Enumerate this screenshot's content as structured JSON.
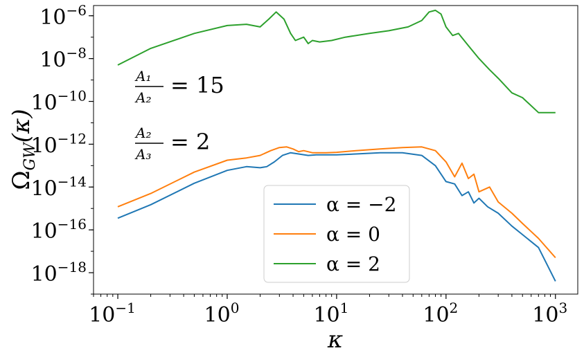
{
  "chart_data": {
    "type": "line",
    "xlabel": "κ",
    "ylabel_base": "Ω",
    "ylabel_sub": "GW",
    "ylabel_arg": "(κ)",
    "xscale": "log",
    "yscale": "log",
    "xlim": [
      0.06,
      1600
    ],
    "ylim": [
      1e-19,
      3e-06
    ],
    "grid": false,
    "legend_position": "bottom-center",
    "x_ticks": [
      {
        "value": 0.1,
        "base": "10",
        "exp": "−1"
      },
      {
        "value": 1,
        "base": "10",
        "exp": "0"
      },
      {
        "value": 10,
        "base": "10",
        "exp": "1"
      },
      {
        "value": 100,
        "base": "10",
        "exp": "2"
      },
      {
        "value": 1000,
        "base": "10",
        "exp": "3"
      }
    ],
    "y_ticks": [
      {
        "value": 1e-06,
        "base": "10",
        "exp": "−6"
      },
      {
        "value": 1e-08,
        "base": "10",
        "exp": "−8"
      },
      {
        "value": 1e-10,
        "base": "10",
        "exp": "−10"
      },
      {
        "value": 1e-12,
        "base": "10",
        "exp": "−12"
      },
      {
        "value": 1e-14,
        "base": "10",
        "exp": "−14"
      },
      {
        "value": 1e-16,
        "base": "10",
        "exp": "−16"
      },
      {
        "value": 1e-18,
        "base": "10",
        "exp": "−18"
      }
    ],
    "annotations": [
      {
        "num": "A₁",
        "den": "A₂",
        "rhs": "= 15"
      },
      {
        "num": "A₂",
        "den": "A₃",
        "rhs": "= 2"
      }
    ],
    "series": [
      {
        "name": "α = −2",
        "color": "#1f77b4",
        "x": [
          0.1,
          0.2,
          0.5,
          1.0,
          1.5,
          2.0,
          2.3,
          2.7,
          3.2,
          3.8,
          4.5,
          5.5,
          6.5,
          8,
          10,
          15,
          25,
          40,
          60,
          80,
          100,
          120,
          140,
          160,
          180,
          200,
          240,
          300,
          400,
          500,
          700,
          1000
        ],
        "y": [
          3.5e-16,
          1.5e-15,
          1.5e-14,
          6e-14,
          9e-14,
          8e-14,
          9e-14,
          1.5e-13,
          3e-13,
          4e-13,
          3.5e-13,
          3e-13,
          3.2e-13,
          3.2e-13,
          3.2e-13,
          3.5e-13,
          4e-13,
          4e-13,
          3e-13,
          1e-13,
          1.8e-14,
          1.4e-14,
          4e-15,
          6e-15,
          1.8e-15,
          3e-15,
          1.2e-15,
          6e-16,
          1.5e-16,
          6e-17,
          1.5e-17,
          4e-19
        ]
      },
      {
        "name": "α = 0",
        "color": "#ff7f0e",
        "x": [
          0.1,
          0.2,
          0.5,
          1.0,
          1.5,
          2.0,
          2.5,
          3.0,
          3.5,
          4.0,
          4.5,
          5.0,
          6.0,
          8,
          10,
          15,
          25,
          40,
          60,
          80,
          100,
          120,
          140,
          160,
          180,
          200,
          250,
          300,
          400,
          500,
          700,
          1000
        ],
        "y": [
          1.2e-15,
          5e-15,
          5e-14,
          1.8e-13,
          2.3e-13,
          3e-13,
          5e-13,
          7e-13,
          7.5e-13,
          6e-13,
          4.5e-13,
          5e-13,
          4e-13,
          4e-13,
          4.2e-13,
          5e-13,
          6e-13,
          7e-13,
          7.5e-13,
          5e-13,
          1.5e-13,
          3e-14,
          1.3e-13,
          2.5e-14,
          4e-14,
          6e-15,
          1e-14,
          2e-15,
          6e-16,
          2e-16,
          4e-17,
          5e-18
        ]
      },
      {
        "name": "α = 2",
        "color": "#2ca02c",
        "x": [
          0.1,
          0.2,
          0.5,
          1.0,
          1.5,
          2.0,
          2.4,
          2.8,
          3.3,
          3.8,
          4.2,
          5.0,
          5.5,
          6.0,
          7.0,
          9.0,
          12,
          20,
          30,
          45,
          60,
          70,
          80,
          90,
          100,
          115,
          130,
          160,
          200,
          250,
          300,
          400,
          500,
          700,
          1000
        ],
        "y": [
          5e-09,
          3e-08,
          1.5e-07,
          3.5e-07,
          4e-07,
          3e-07,
          7e-07,
          1.5e-06,
          7e-07,
          1.5e-07,
          7e-08,
          1e-07,
          5e-08,
          7e-08,
          6e-08,
          7e-08,
          1e-07,
          1.5e-07,
          2e-07,
          3e-07,
          6e-07,
          1.5e-06,
          1.8e-06,
          1.2e-06,
          3e-07,
          1.2e-07,
          1.5e-07,
          4e-08,
          1e-08,
          3e-09,
          1.2e-09,
          2.5e-10,
          1.5e-10,
          3e-11,
          3e-11
        ]
      }
    ]
  }
}
